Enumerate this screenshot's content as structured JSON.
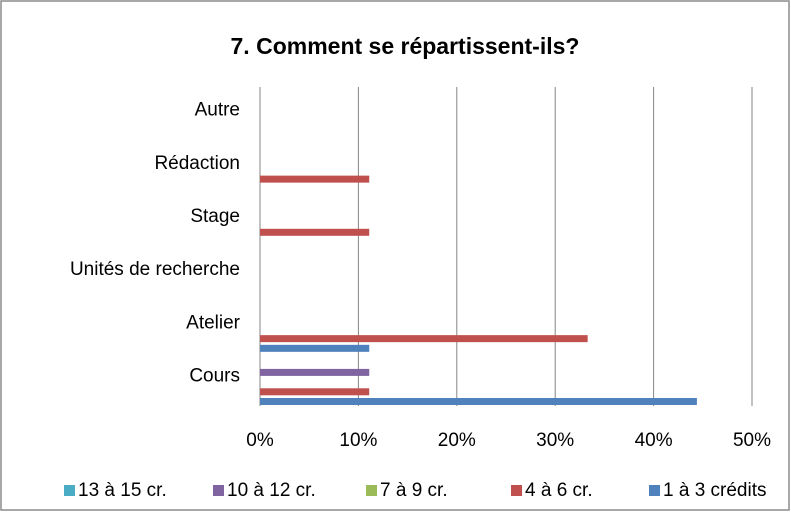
{
  "chart_data": {
    "type": "hbar",
    "title": "7. Comment se répartissent-ils?",
    "categories": [
      "Cours",
      "Atelier",
      "Unités de recherche",
      "Stage",
      "Rédaction",
      "Autre"
    ],
    "series": [
      {
        "name": "1 à 3 crédits",
        "color": "#4f81bd",
        "values": [
          44.4,
          11.1,
          0,
          0,
          0,
          0
        ]
      },
      {
        "name": "4 à 6 cr.",
        "color": "#c0504d",
        "values": [
          11.1,
          33.3,
          0,
          11.1,
          11.1,
          0
        ]
      },
      {
        "name": "7 à 9 cr.",
        "color": "#9bbb59",
        "values": [
          0,
          0,
          0,
          0,
          0,
          0
        ]
      },
      {
        "name": "10 à 12 cr.",
        "color": "#8064a2",
        "values": [
          11.1,
          0,
          0,
          0,
          0,
          0
        ]
      },
      {
        "name": "13 à 15 cr.",
        "color": "#4bacc6",
        "values": [
          0,
          0,
          0,
          0,
          0,
          0
        ]
      }
    ],
    "xlim": [
      0,
      50
    ],
    "xticks": [
      {
        "value": 0,
        "label": "0%"
      },
      {
        "value": 10,
        "label": "10%"
      },
      {
        "value": 20,
        "label": "20%"
      },
      {
        "value": 30,
        "label": "30%"
      },
      {
        "value": 40,
        "label": "40%"
      },
      {
        "value": 50,
        "label": "50%"
      }
    ],
    "grid": true,
    "legend": "bottom"
  }
}
